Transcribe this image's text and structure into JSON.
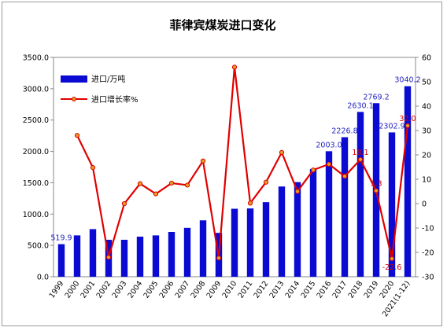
{
  "chart_data": {
    "type": "bar+line",
    "title": "菲律宾煤炭进口变化",
    "categories": [
      "1999",
      "2000",
      "2001",
      "2002",
      "2003",
      "2004",
      "2005",
      "2006",
      "2007",
      "2008",
      "2009",
      "2010",
      "2011",
      "2012",
      "2013",
      "2014",
      "2015",
      "2016",
      "2017",
      "2018",
      "2019",
      "2020",
      "2021(1-12)"
    ],
    "series": [
      {
        "name": "进口/万吨",
        "type": "bar",
        "axis": "left",
        "color": "#0a0ad2",
        "values": [
          519.9,
          660,
          760,
          590,
          590,
          640,
          660,
          715,
          780,
          900,
          700,
          1085,
          1090,
          1190,
          1440,
          1510,
          1720,
          2003.0,
          2226.8,
          2630.1,
          2769.2,
          2302.9,
          3040.2
        ],
        "labels": [
          "519.9",
          "",
          "",
          "",
          "",
          "",
          "",
          "",
          "",
          "",
          "",
          "",
          "",
          "",
          "",
          "",
          "",
          "2003.0",
          "2226.8",
          "2630.1",
          "2769.2",
          "2302.9",
          "3040.2"
        ]
      },
      {
        "name": "进口增长率%",
        "type": "line",
        "axis": "right",
        "color": "#e00000",
        "marker_color": "#e0a020",
        "values": [
          null,
          28,
          14.8,
          -22,
          0,
          8.2,
          4,
          8.4,
          7.6,
          17.5,
          -22.3,
          56,
          0.2,
          8.8,
          21,
          5,
          13.8,
          16.2,
          11.2,
          18.1,
          5.3,
          -22.6,
          32.0
        ],
        "labels": [
          "",
          "",
          "",
          "",
          "",
          "",
          "",
          "",
          "",
          "",
          "",
          "",
          "",
          "",
          "",
          "",
          "",
          "",
          "",
          "18.1",
          "5.3",
          "-22.6",
          "32.0"
        ]
      }
    ],
    "y_left": {
      "min": 0,
      "max": 3500,
      "step": 500,
      "ticks": [
        "0.0",
        "500.0",
        "1000.0",
        "1500.0",
        "2000.0",
        "2500.0",
        "3000.0",
        "3500.0"
      ]
    },
    "y_right": {
      "min": -30,
      "max": 60,
      "step": 10,
      "ticks": [
        "-30",
        "-20",
        "-10",
        "0",
        "10",
        "20",
        "30",
        "40",
        "50",
        "60"
      ]
    },
    "grid": false,
    "legend_position": "top-left"
  }
}
